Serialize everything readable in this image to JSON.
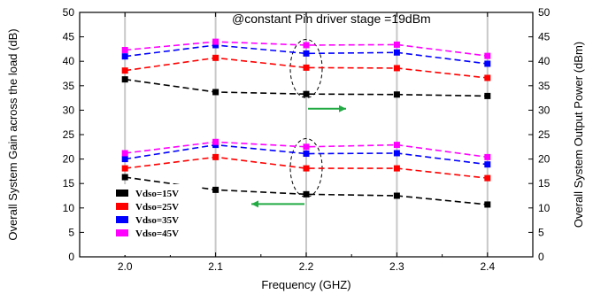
{
  "chart_data": {
    "type": "line",
    "xlabel": "Frequency (GHZ)",
    "ylabel": "Overall System Gain across the load (dB)",
    "y2label": "Overall System Output Power (dBm)",
    "annotation": "@constant Pin driver stage =19dBm",
    "xlim": [
      1.95,
      2.45
    ],
    "ylim": [
      0,
      50
    ],
    "y2lim": [
      0,
      50
    ],
    "x": [
      2.0,
      2.1,
      2.2,
      2.3,
      2.4
    ],
    "x_ticks": [
      "2.0",
      "2.1",
      "2.2",
      "2.3",
      "2.4"
    ],
    "y_ticks": [
      "0",
      "5",
      "10",
      "15",
      "20",
      "25",
      "30",
      "35",
      "40",
      "45",
      "50"
    ],
    "y2_ticks": [
      "0",
      "5",
      "10",
      "15",
      "20",
      "25",
      "30",
      "35",
      "40",
      "45",
      "50"
    ],
    "grid": "vertical",
    "legend_position": "lower-left",
    "series": [
      {
        "name": "Vdso=15V",
        "color": "#000000",
        "axis": "gain",
        "values": [
          16.3,
          13.7,
          12.8,
          12.5,
          10.7
        ]
      },
      {
        "name": "Vdso=25V",
        "color": "#ff0000",
        "axis": "gain",
        "values": [
          18.1,
          20.4,
          18.1,
          18.1,
          16.1
        ]
      },
      {
        "name": "Vdso=35V",
        "color": "#0000ff",
        "axis": "gain",
        "values": [
          20.0,
          22.9,
          21.1,
          21.2,
          18.9
        ]
      },
      {
        "name": "Vdso=45V",
        "color": "#ff00ff",
        "axis": "gain",
        "values": [
          21.2,
          23.5,
          22.5,
          22.9,
          20.4
        ]
      },
      {
        "name": "Vdso=15V",
        "color": "#000000",
        "axis": "power",
        "values": [
          36.3,
          33.7,
          33.3,
          33.2,
          32.9
        ]
      },
      {
        "name": "Vdso=25V",
        "color": "#ff0000",
        "axis": "power",
        "values": [
          38.1,
          40.7,
          38.7,
          38.6,
          36.6
        ]
      },
      {
        "name": "Vdso=35V",
        "color": "#0000ff",
        "axis": "power",
        "values": [
          41.0,
          43.3,
          41.6,
          41.8,
          39.5
        ]
      },
      {
        "name": "Vdso=45V",
        "color": "#ff00ff",
        "axis": "power",
        "values": [
          42.3,
          44.0,
          43.3,
          43.4,
          41.1
        ]
      }
    ],
    "legend": [
      {
        "label": "Vdso=15V",
        "color": "#000000"
      },
      {
        "label": "Vdso=25V",
        "color": "#ff0000"
      },
      {
        "label": "Vdso=35V",
        "color": "#0000ff"
      },
      {
        "label": "Vdso=45V",
        "color": "#ff00ff"
      }
    ],
    "arrow_color": "#22aa44"
  }
}
